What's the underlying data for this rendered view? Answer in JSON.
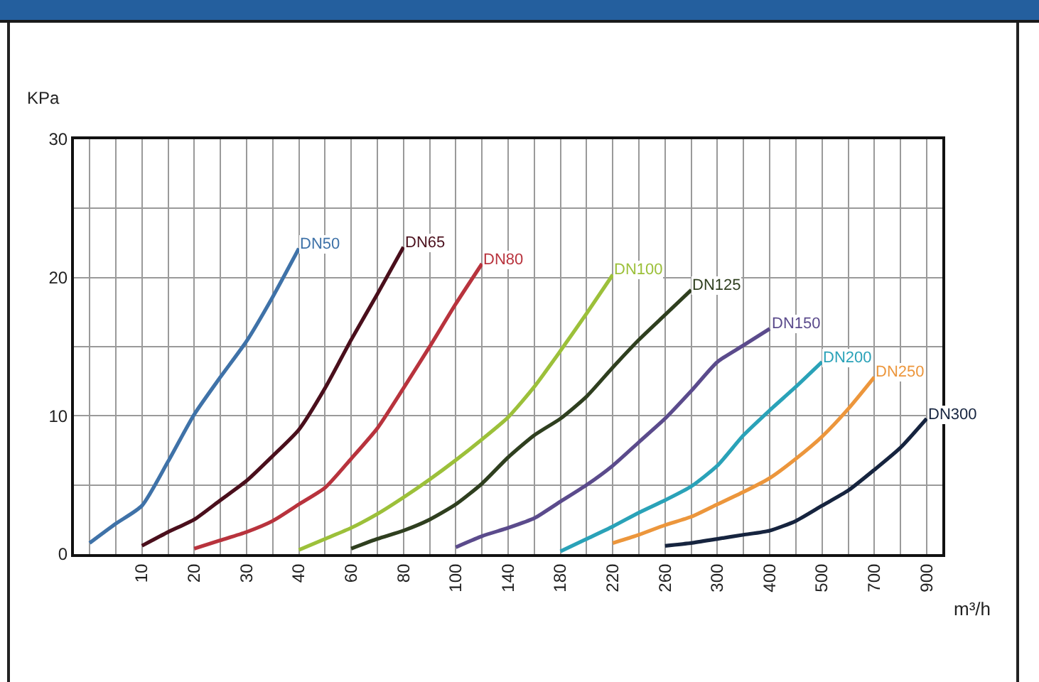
{
  "chart_data": {
    "type": "line",
    "xlabel": "m³/h",
    "ylabel": "KPa",
    "categories": [
      null,
      null,
      "10",
      null,
      "20",
      null,
      "30",
      null,
      "40",
      null,
      "60",
      null,
      "80",
      null,
      "100",
      null,
      "140",
      null,
      "180",
      null,
      "220",
      null,
      "260",
      null,
      "300",
      null,
      "400",
      null,
      "500",
      null,
      "700",
      null,
      "900"
    ],
    "ylim": [
      0,
      30
    ],
    "yticks": [
      0,
      {
        "value": 5,
        "label": null
      },
      10,
      {
        "value": 15,
        "label": null
      },
      20,
      {
        "value": 25,
        "label": null
      },
      30
    ],
    "grid": true,
    "legend": false,
    "marker": "none",
    "line_style": "solid",
    "series": [
      {
        "name": "DN50",
        "color": "#3f72a8",
        "values": [
          0.8,
          2.2,
          3.5,
          6.7,
          10.1,
          12.8,
          15.4,
          18.6,
          22.1,
          null,
          null,
          null,
          null,
          null,
          null,
          null,
          null,
          null,
          null,
          null,
          null,
          null,
          null,
          null,
          null,
          null,
          null,
          null,
          null,
          null,
          null,
          null,
          null
        ]
      },
      {
        "name": "DN65",
        "color": "#4a0f1c",
        "values": [
          null,
          null,
          0.6,
          1.6,
          2.5,
          3.9,
          5.3,
          7.1,
          9.0,
          12.0,
          15.5,
          18.8,
          22.2,
          null,
          null,
          null,
          null,
          null,
          null,
          null,
          null,
          null,
          null,
          null,
          null,
          null,
          null,
          null,
          null,
          null,
          null,
          null,
          null
        ]
      },
      {
        "name": "DN80",
        "color": "#b8333d",
        "values": [
          null,
          null,
          null,
          null,
          0.4,
          1.0,
          1.6,
          2.4,
          3.6,
          4.8,
          6.9,
          9.1,
          12.0,
          15.0,
          18.1,
          21.0,
          null,
          null,
          null,
          null,
          null,
          null,
          null,
          null,
          null,
          null,
          null,
          null,
          null,
          null,
          null,
          null,
          null
        ]
      },
      {
        "name": "DN100",
        "color": "#9cc03a",
        "values": [
          null,
          null,
          null,
          null,
          null,
          null,
          null,
          null,
          0.3,
          1.1,
          1.9,
          2.9,
          4.1,
          5.4,
          6.8,
          8.3,
          9.9,
          12.1,
          14.7,
          17.4,
          20.2,
          null,
          null,
          null,
          null,
          null,
          null,
          null,
          null,
          null,
          null,
          null,
          null
        ]
      },
      {
        "name": "DN125",
        "color": "#2f3f1f",
        "values": [
          null,
          null,
          null,
          null,
          null,
          null,
          null,
          null,
          null,
          null,
          0.4,
          1.1,
          1.7,
          2.5,
          3.6,
          5.1,
          7.0,
          8.6,
          9.8,
          11.4,
          13.5,
          15.5,
          17.3,
          19.1,
          null,
          null,
          null,
          null,
          null,
          null,
          null,
          null,
          null
        ]
      },
      {
        "name": "DN150",
        "color": "#5b4b8c",
        "values": [
          null,
          null,
          null,
          null,
          null,
          null,
          null,
          null,
          null,
          null,
          null,
          null,
          null,
          null,
          0.5,
          1.3,
          1.9,
          2.6,
          3.8,
          5.0,
          6.4,
          8.1,
          9.8,
          11.8,
          13.9,
          15.1,
          16.3,
          null,
          null,
          null,
          null,
          null,
          null
        ]
      },
      {
        "name": "DN200",
        "color": "#2aa2b8",
        "values": [
          null,
          null,
          null,
          null,
          null,
          null,
          null,
          null,
          null,
          null,
          null,
          null,
          null,
          null,
          null,
          null,
          null,
          null,
          0.2,
          1.1,
          2.0,
          3.0,
          3.9,
          4.9,
          6.4,
          8.6,
          10.4,
          12.1,
          13.9,
          null,
          null,
          null,
          null
        ]
      },
      {
        "name": "DN250",
        "color": "#ec963c",
        "values": [
          null,
          null,
          null,
          null,
          null,
          null,
          null,
          null,
          null,
          null,
          null,
          null,
          null,
          null,
          null,
          null,
          null,
          null,
          null,
          null,
          0.8,
          1.4,
          2.1,
          2.7,
          3.6,
          4.5,
          5.5,
          6.9,
          8.5,
          10.5,
          12.8,
          null,
          null
        ]
      },
      {
        "name": "DN300",
        "color": "#16243f",
        "values": [
          null,
          null,
          null,
          null,
          null,
          null,
          null,
          null,
          null,
          null,
          null,
          null,
          null,
          null,
          null,
          null,
          null,
          null,
          null,
          null,
          null,
          null,
          0.6,
          0.8,
          1.1,
          1.4,
          1.7,
          2.4,
          3.5,
          4.6,
          6.1,
          7.7,
          9.8
        ]
      }
    ]
  }
}
